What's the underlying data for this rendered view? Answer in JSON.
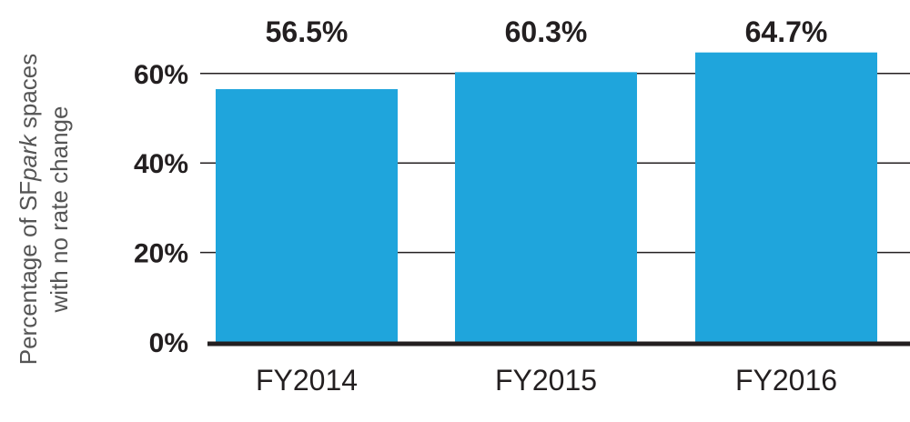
{
  "chart_data": {
    "type": "bar",
    "categories": [
      "FY2014",
      "FY2015",
      "FY2016"
    ],
    "values": [
      56.5,
      60.3,
      64.7
    ],
    "data_labels": [
      "56.5%",
      "60.3%",
      "64.7%"
    ],
    "ylabel_line1": [
      "Percentage of SF",
      "park",
      " spaces"
    ],
    "ylabel_line2": "with no rate change",
    "ylim": [
      0,
      70
    ],
    "yticks": [
      0,
      20,
      40,
      60
    ],
    "ytick_labels": [
      "0%",
      "20%",
      "40%",
      "60%"
    ],
    "grid": true,
    "colors": {
      "bar": "#1fa5dc",
      "highlight_label": "#1fa5dc",
      "text": "#231f20",
      "grid": "#231f20",
      "axis": "#231f20"
    },
    "highlight_category": "FY2016"
  }
}
